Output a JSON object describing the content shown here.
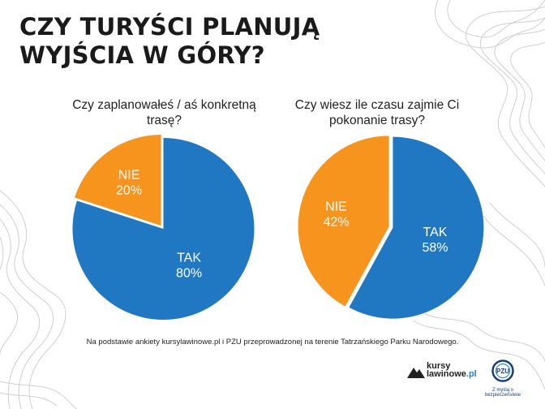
{
  "title_line1": "CZY TURYŚCI PLANUJĄ",
  "title_line2": "WYJŚCIA W GÓRY?",
  "note": "Na podstawie ankiety kursylawinowe.pl i PZU przeprowadzonej na terenie Tatrzańskiego Parku Narodowego.",
  "colors": {
    "yes": "#1f78c1",
    "no": "#f7941d"
  },
  "logos": {
    "kursy_line1": "kursy",
    "kursy_line2": "lawinowe",
    "kursy_tld": ".pl",
    "pzu_text": "PZU",
    "pzu_tagline": "Z myślą o bezpieczeństwie"
  },
  "chart_data": [
    {
      "type": "pie",
      "title": "Czy zaplanowałeś / aś konkretną trasę?",
      "slices": [
        {
          "label": "TAK",
          "value": 80,
          "value_label": "80%"
        },
        {
          "label": "NIE",
          "value": 20,
          "value_label": "20%"
        }
      ]
    },
    {
      "type": "pie",
      "title": "Czy wiesz ile czasu zajmie Ci pokonanie trasy?",
      "slices": [
        {
          "label": "TAK",
          "value": 58,
          "value_label": "58%"
        },
        {
          "label": "NIE",
          "value": 42,
          "value_label": "42%"
        }
      ]
    }
  ]
}
